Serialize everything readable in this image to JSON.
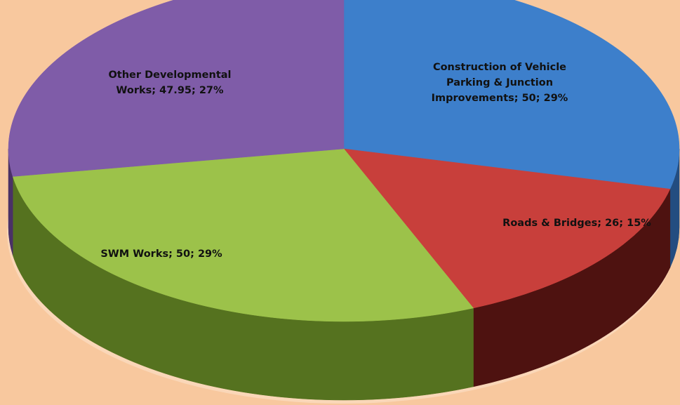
{
  "chart_data": {
    "type": "pie",
    "values": [
      50,
      26,
      50,
      47.95
    ],
    "value_labels": [
      "Construction of Vehicle Parking & Junction Improvements; 50; 29%",
      "Roads & Bridges; 26; 15%",
      "SWM Works; 50; 29%",
      "Other Developmental Works; 47.95; 27%"
    ],
    "colors": [
      "#3d7fcb",
      "#c83f3b",
      "#9cc24a",
      "#7f5ca8"
    ],
    "side_colors": [
      "#234d80",
      "#4e1210",
      "#55721f",
      "#4a3166"
    ]
  }
}
